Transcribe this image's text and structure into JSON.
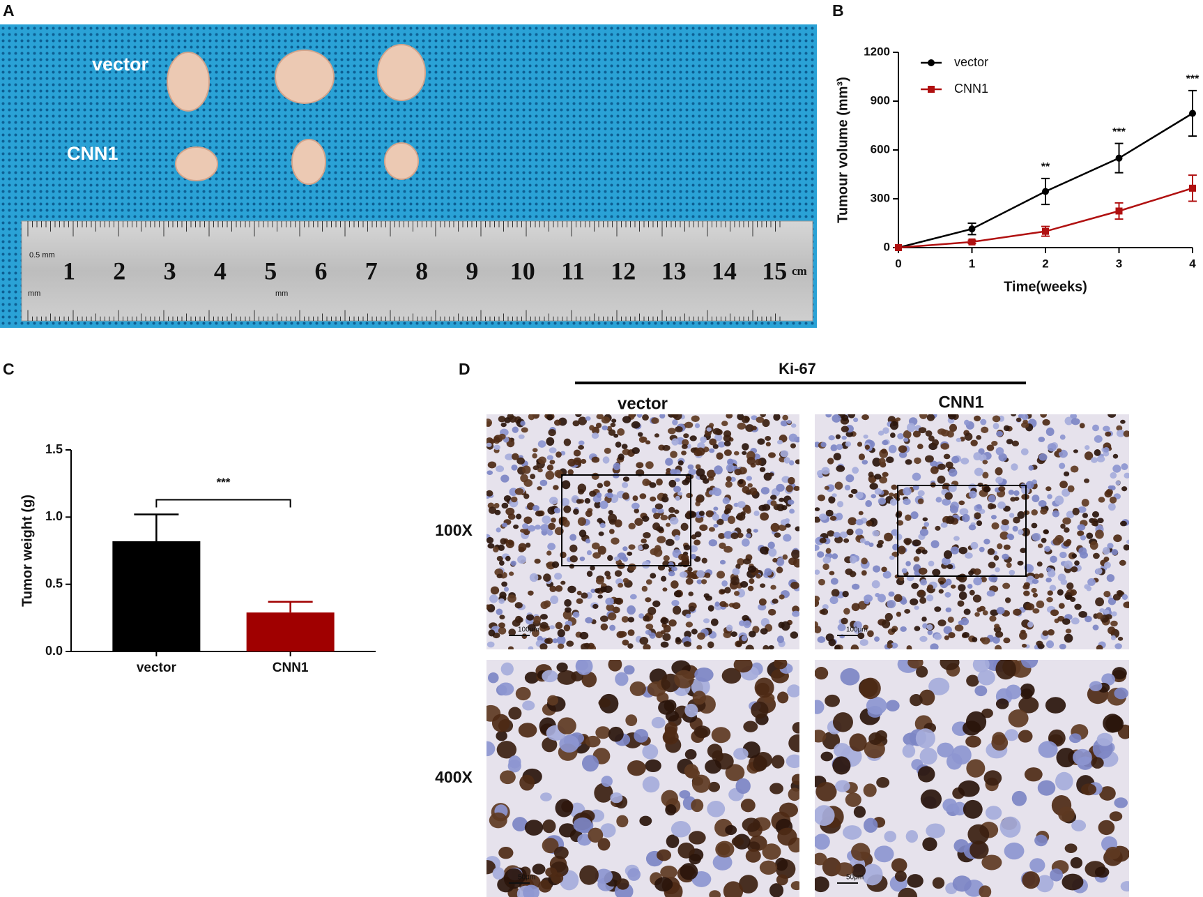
{
  "panel_labels": [
    "A",
    "B",
    "C",
    "D"
  ],
  "photo": {
    "labels": [
      "vector",
      "CNN1"
    ],
    "ruler_numbers": [
      "1",
      "2",
      "3",
      "4",
      "5",
      "6",
      "7",
      "8",
      "9",
      "10",
      "11",
      "12",
      "13",
      "14",
      "15"
    ],
    "ruler_unit": "cm",
    "ruler_marks": [
      "0.5 mm",
      "mm",
      "mm"
    ]
  },
  "chart_data": [
    {
      "type": "line",
      "x": [
        0,
        1,
        2,
        3,
        4
      ],
      "xlim": [
        0,
        4
      ],
      "xticks": [
        0,
        1,
        2,
        3,
        4
      ],
      "ylim": [
        0,
        1200
      ],
      "yticks": [
        0,
        300,
        600,
        900,
        1200
      ],
      "xlabel": "Time(weeks)",
      "ylabel": "Tumour volume (mm³)",
      "legend": "top-left",
      "series": [
        {
          "name": "vector",
          "color": "#000000",
          "marker": "circle",
          "values": [
            0,
            115,
            345,
            550,
            825
          ],
          "errors": [
            0,
            35,
            80,
            90,
            140
          ]
        },
        {
          "name": "CNN1",
          "color": "#b01010",
          "marker": "square",
          "values": [
            0,
            35,
            100,
            225,
            365
          ],
          "errors": [
            0,
            10,
            30,
            50,
            80
          ]
        }
      ],
      "annotations": [
        {
          "x": 2,
          "text": "**"
        },
        {
          "x": 3,
          "text": "***"
        },
        {
          "x": 4,
          "text": "***"
        }
      ]
    },
    {
      "type": "bar",
      "categories": [
        "vector",
        "CNN1"
      ],
      "values": [
        0.82,
        0.29
      ],
      "errors": [
        0.2,
        0.08
      ],
      "colors": [
        "#000000",
        "#a00000"
      ],
      "ylim": [
        0,
        1.5
      ],
      "yticks": [
        {
          "value": 0,
          "label": "0.0"
        },
        {
          "value": 0.5,
          "label": "0.5"
        },
        {
          "value": 1,
          "label": "1.0"
        },
        {
          "value": 1.5,
          "label": "1.5"
        }
      ],
      "ylabel": "Tumor weight (g)",
      "annotation": "***"
    }
  ],
  "histology": {
    "title": "Ki-67",
    "columns": [
      "vector",
      "CNN1"
    ],
    "rows": [
      "100X",
      "400X"
    ],
    "scale_bars": [
      "100μm",
      "100μm",
      "50μm",
      "50μm"
    ]
  }
}
